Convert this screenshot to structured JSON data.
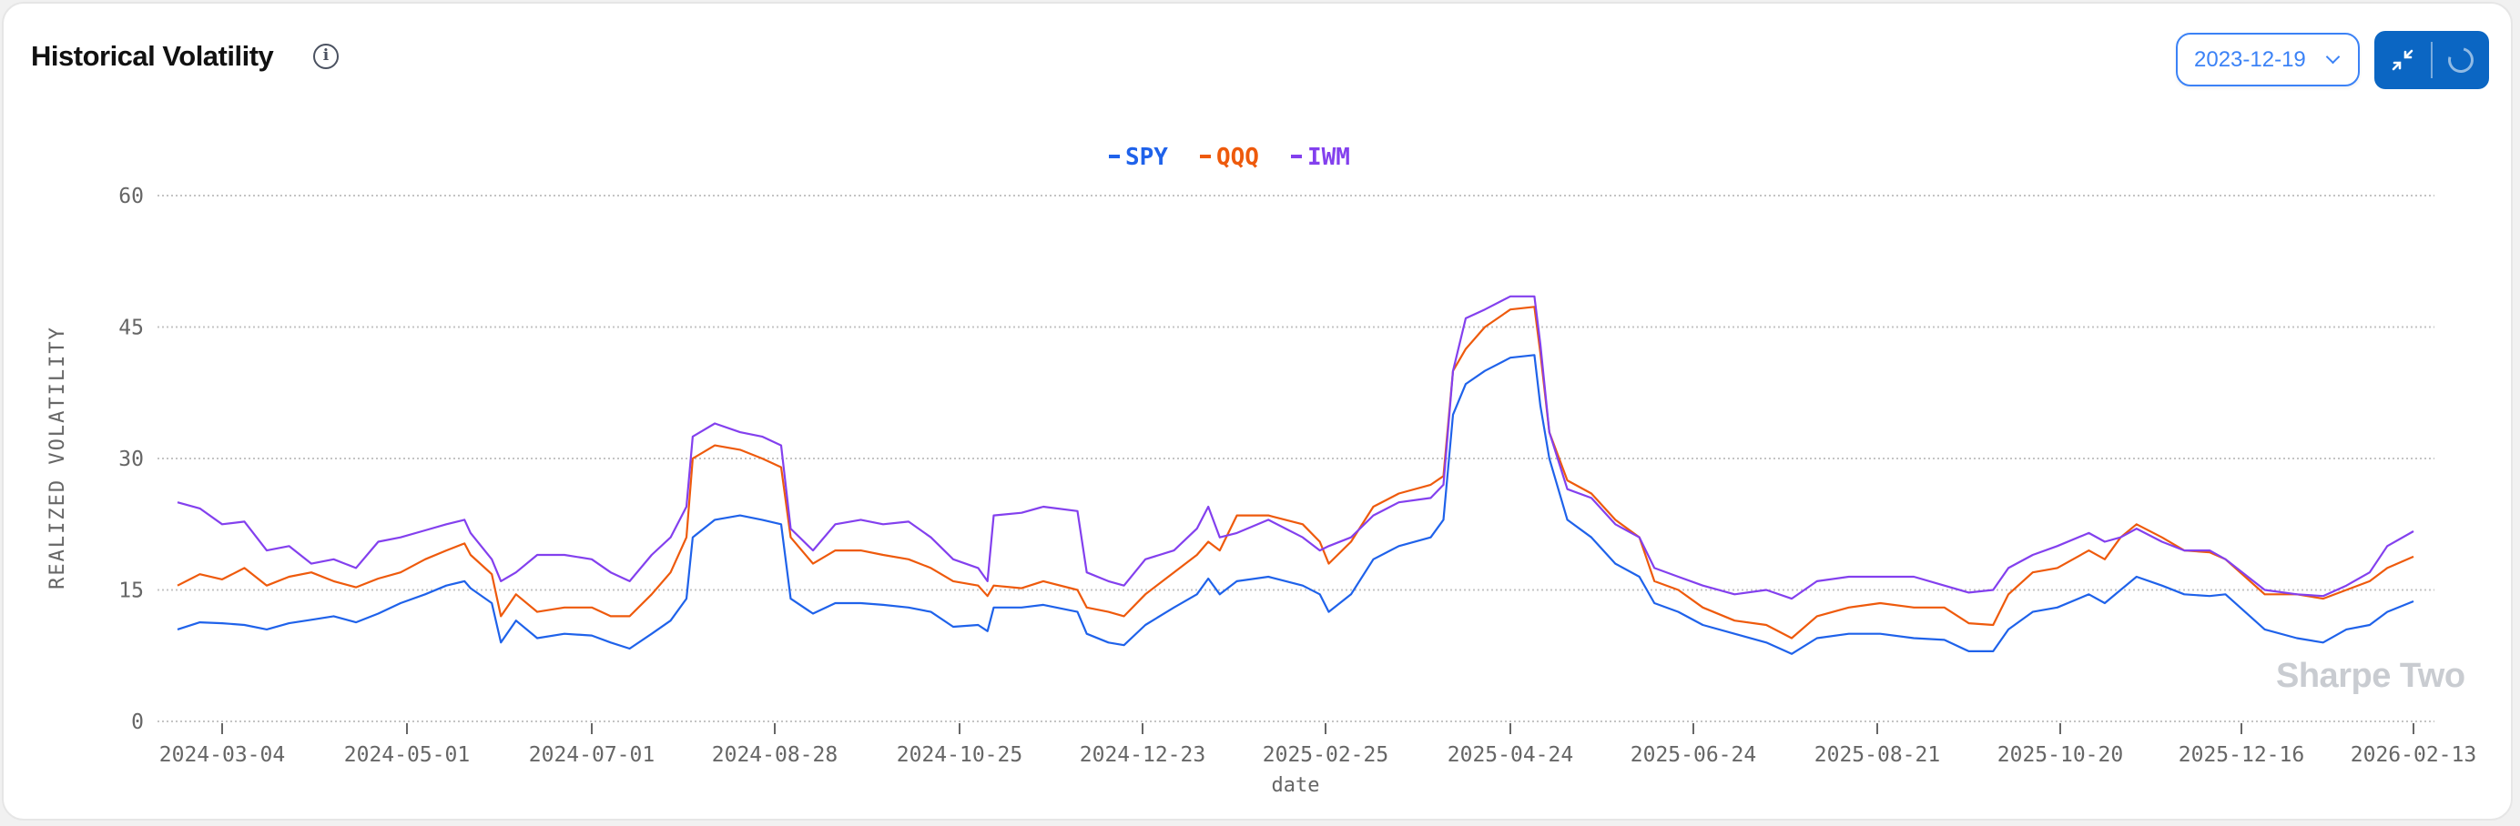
{
  "header": {
    "title": "Historical Volatility",
    "info_icon": "info-circle-icon",
    "date_select": {
      "value": "2023-12-19",
      "icon": "chevron-down-icon"
    },
    "buttons": {
      "collapse_icon": "collapse-arrows-icon",
      "loading_icon": "spinner-icon"
    }
  },
  "watermark": "Sharpe Two",
  "chart_data": {
    "type": "line",
    "title": "Historical Volatility",
    "xlabel": "date",
    "ylabel": "REALIZED VOLATILITY",
    "ylim": [
      0,
      60
    ],
    "yticks": [
      "0",
      "15",
      "30",
      "45",
      "60"
    ],
    "grid": true,
    "legend_position": "top-center",
    "xticks": [
      "2024-03-04",
      "2024-05-01",
      "2024-07-01",
      "2024-08-28",
      "2024-10-25",
      "2024-12-23",
      "2025-02-25",
      "2025-04-24",
      "2025-06-24",
      "2025-08-21",
      "2025-10-20",
      "2025-12-16",
      "2026-02-13"
    ],
    "x": [
      "2024-02-19",
      "2024-02-26",
      "2024-03-04",
      "2024-03-11",
      "2024-03-18",
      "2024-03-25",
      "2024-04-01",
      "2024-04-08",
      "2024-04-15",
      "2024-04-22",
      "2024-04-29",
      "2024-05-07",
      "2024-05-14",
      "2024-05-20",
      "2024-05-22",
      "2024-05-29",
      "2024-06-01",
      "2024-06-06",
      "2024-06-13",
      "2024-06-22",
      "2024-07-01",
      "2024-07-07",
      "2024-07-13",
      "2024-07-20",
      "2024-07-26",
      "2024-07-31",
      "2024-08-02",
      "2024-08-09",
      "2024-08-17",
      "2024-08-24",
      "2024-08-30",
      "2024-09-02",
      "2024-09-09",
      "2024-09-16",
      "2024-09-24",
      "2024-10-01",
      "2024-10-09",
      "2024-10-16",
      "2024-10-23",
      "2024-10-31",
      "2024-11-03",
      "2024-11-05",
      "2024-11-14",
      "2024-11-21",
      "2024-12-02",
      "2024-12-05",
      "2024-12-12",
      "2024-12-17",
      "2024-12-24",
      "2025-01-03",
      "2025-01-11",
      "2025-01-15",
      "2025-01-19",
      "2025-01-25",
      "2025-02-05",
      "2025-02-17",
      "2025-02-23",
      "2025-02-26",
      "2025-03-05",
      "2025-03-12",
      "2025-03-20",
      "2025-03-30",
      "2025-04-03",
      "2025-04-06",
      "2025-04-10",
      "2025-04-16",
      "2025-04-24",
      "2025-05-02",
      "2025-05-04",
      "2025-05-07",
      "2025-05-13",
      "2025-05-21",
      "2025-05-29",
      "2025-06-06",
      "2025-06-11",
      "2025-06-19",
      "2025-06-27",
      "2025-07-07",
      "2025-07-17",
      "2025-07-25",
      "2025-08-02",
      "2025-08-12",
      "2025-08-22",
      "2025-09-02",
      "2025-09-12",
      "2025-09-20",
      "2025-09-28",
      "2025-10-03",
      "2025-10-11",
      "2025-10-19",
      "2025-10-29",
      "2025-11-03",
      "2025-11-08",
      "2025-11-13",
      "2025-11-21",
      "2025-11-28",
      "2025-12-06",
      "2025-12-11",
      "2025-12-24",
      "2026-01-04",
      "2026-01-13",
      "2026-01-21",
      "2026-01-29",
      "2026-02-04",
      "2026-02-13"
    ],
    "series": [
      {
        "name": "SPY",
        "color": "#1f62ea",
        "values": [
          10.5,
          11.3,
          11.2,
          11.0,
          10.5,
          11.2,
          11.6,
          12.0,
          11.3,
          12.3,
          13.5,
          14.5,
          15.5,
          16.0,
          15.2,
          13.5,
          9.0,
          11.5,
          9.5,
          10.0,
          9.8,
          9.0,
          8.3,
          10.0,
          11.5,
          14.0,
          21.0,
          23.0,
          23.5,
          23.0,
          22.5,
          14.0,
          12.3,
          13.5,
          13.5,
          13.3,
          13.0,
          12.5,
          10.8,
          11.0,
          10.3,
          13.0,
          13.0,
          13.3,
          12.5,
          10.0,
          9.0,
          8.7,
          11.0,
          13.0,
          14.5,
          16.3,
          14.5,
          16.0,
          16.5,
          15.5,
          14.5,
          12.5,
          14.5,
          18.5,
          20.0,
          21.0,
          23.0,
          35.0,
          38.5,
          40.0,
          41.5,
          41.8,
          36.0,
          30.0,
          23.0,
          21.0,
          18.0,
          16.5,
          13.5,
          12.5,
          11.0,
          10.0,
          9.0,
          7.7,
          9.5,
          10.0,
          10.0,
          9.5,
          9.3,
          8.0,
          8.0,
          10.5,
          12.5,
          13.0,
          14.5,
          13.5,
          15.0,
          16.5,
          15.5,
          14.5,
          14.3,
          14.5,
          10.5,
          9.5,
          9.0,
          10.5,
          11.0,
          12.5,
          13.7
        ]
      },
      {
        "name": "QQQ",
        "color": "#ee5a0c",
        "values": [
          15.5,
          16.8,
          16.2,
          17.5,
          15.5,
          16.5,
          17.0,
          16.0,
          15.3,
          16.3,
          17.0,
          18.5,
          19.5,
          20.3,
          19.0,
          16.8,
          12.0,
          14.5,
          12.5,
          13.0,
          13.0,
          12.0,
          12.0,
          14.5,
          17.0,
          21.0,
          30.0,
          31.5,
          31.0,
          30.0,
          29.0,
          21.0,
          18.0,
          19.5,
          19.5,
          19.0,
          18.5,
          17.5,
          16.0,
          15.5,
          14.3,
          15.5,
          15.2,
          16.0,
          15.0,
          13.0,
          12.5,
          12.0,
          14.5,
          17.0,
          19.0,
          20.5,
          19.5,
          23.5,
          23.5,
          22.5,
          20.5,
          18.0,
          20.5,
          24.5,
          26.0,
          27.0,
          28.0,
          40.0,
          42.5,
          45.0,
          47.0,
          47.3,
          42.0,
          33.0,
          27.5,
          26.0,
          23.0,
          21.0,
          16.0,
          15.0,
          13.0,
          11.5,
          11.0,
          9.5,
          12.0,
          13.0,
          13.5,
          13.0,
          13.0,
          11.2,
          11.0,
          14.5,
          17.0,
          17.5,
          19.5,
          18.5,
          21.0,
          22.5,
          21.0,
          19.5,
          19.3,
          18.5,
          14.5,
          14.5,
          14.0,
          15.0,
          16.0,
          17.5,
          18.8
        ]
      },
      {
        "name": "IWM",
        "color": "#8340ee",
        "values": [
          25.0,
          24.3,
          22.5,
          22.8,
          19.5,
          20.0,
          18.0,
          18.5,
          17.5,
          20.5,
          21.0,
          21.8,
          22.5,
          23.0,
          21.5,
          18.5,
          16.0,
          17.0,
          19.0,
          19.0,
          18.5,
          17.0,
          16.0,
          19.0,
          21.0,
          24.5,
          32.5,
          34.0,
          33.0,
          32.5,
          31.5,
          22.0,
          19.5,
          22.5,
          23.0,
          22.5,
          22.8,
          21.0,
          18.5,
          17.5,
          16.0,
          23.5,
          23.8,
          24.5,
          24.0,
          17.0,
          16.0,
          15.5,
          18.5,
          19.5,
          22.0,
          24.5,
          21.0,
          21.5,
          23.0,
          21.0,
          19.5,
          20.0,
          21.0,
          23.5,
          25.0,
          25.5,
          27.0,
          40.0,
          46.0,
          47.0,
          48.5,
          48.5,
          43.0,
          33.0,
          26.5,
          25.5,
          22.5,
          21.0,
          17.5,
          16.5,
          15.5,
          14.5,
          15.0,
          14.0,
          16.0,
          16.5,
          16.5,
          16.5,
          15.5,
          14.7,
          15.0,
          17.5,
          19.0,
          20.0,
          21.5,
          20.5,
          21.0,
          22.0,
          20.5,
          19.5,
          19.5,
          18.5,
          15.0,
          14.5,
          14.3,
          15.5,
          17.0,
          20.0,
          21.7
        ]
      }
    ]
  }
}
